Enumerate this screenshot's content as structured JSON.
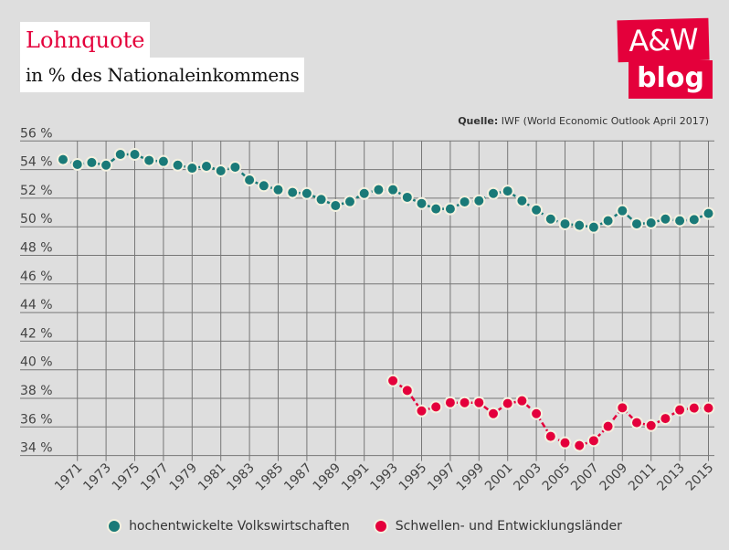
{
  "header": {
    "title": "Lohnquote",
    "subtitle": "in % des Nationaleinkommens"
  },
  "logo": {
    "line1": "A&W",
    "line2": "blog"
  },
  "source": {
    "label": "Quelle:",
    "text": "IWF (World Economic Outlook April 2017)"
  },
  "colors": {
    "teal": "#1a7a78",
    "red": "#e4003b",
    "grid": "#777777",
    "background": "#dedede"
  },
  "chart_data": {
    "type": "line",
    "title": "Lohnquote",
    "subtitle": "in % des Nationaleinkommens",
    "xlabel": "",
    "ylabel": "",
    "ylim": [
      34,
      56
    ],
    "xlim": [
      1970,
      2015
    ],
    "yticks": [
      "34 %",
      "36 %",
      "38 %",
      "40 %",
      "42 %",
      "44 %",
      "46 %",
      "48 %",
      "50 %",
      "52 %",
      "54 %",
      "56 %"
    ],
    "ytick_values": [
      34,
      36,
      38,
      40,
      42,
      44,
      46,
      48,
      50,
      52,
      54,
      56
    ],
    "xticks": [
      "1971",
      "1973",
      "1975",
      "1977",
      "1979",
      "1981",
      "1983",
      "1985",
      "1987",
      "1989",
      "1991",
      "1993",
      "1995",
      "1997",
      "1999",
      "2001",
      "2003",
      "2005",
      "2007",
      "2009",
      "2011",
      "2013",
      "2015"
    ],
    "grid": true,
    "legend_position": "bottom",
    "series": [
      {
        "name": "hochentwickelte Volkswirtschaften",
        "color": "#1a7a78",
        "start_year": 1970,
        "values": [
          54.7,
          54.36,
          54.49,
          54.31,
          55.06,
          55.06,
          54.64,
          54.57,
          54.31,
          54.1,
          54.23,
          53.91,
          54.17,
          53.27,
          52.87,
          52.59,
          52.4,
          52.33,
          51.91,
          51.48,
          51.76,
          52.33,
          52.59,
          52.59,
          52.06,
          51.63,
          51.25,
          51.25,
          51.74,
          51.82,
          52.33,
          52.5,
          51.82,
          51.18,
          50.54,
          50.2,
          50.1,
          49.97,
          50.42,
          51.12,
          50.2,
          50.27,
          50.54,
          50.42,
          50.5,
          50.93
        ]
      },
      {
        "name": "Schwellen- und Entwicklungsländer",
        "color": "#e4003b",
        "start_year": 1993,
        "values": [
          39.23,
          38.55,
          37.12,
          37.4,
          37.7,
          37.7,
          37.7,
          36.93,
          37.64,
          37.83,
          36.93,
          35.34,
          34.89,
          34.7,
          35.04,
          36.04,
          37.34,
          36.3,
          36.1,
          36.59,
          37.19,
          37.32,
          37.32
        ]
      }
    ]
  }
}
